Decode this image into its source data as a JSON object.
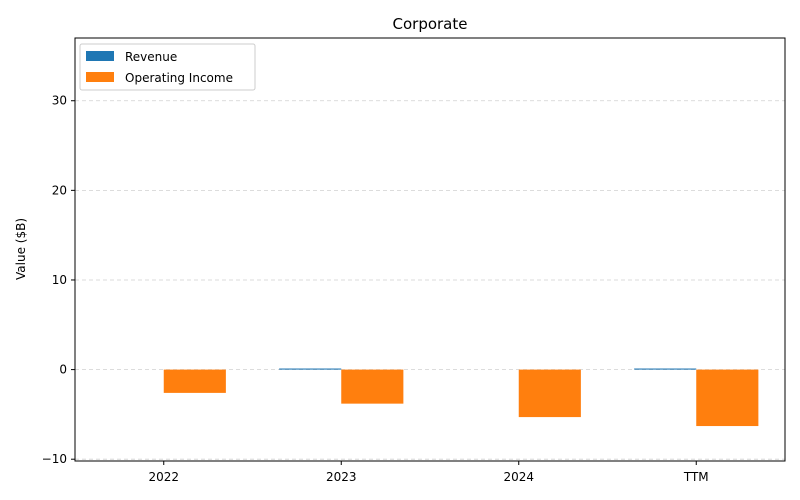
{
  "chart_data": {
    "type": "bar",
    "title": "Corporate",
    "xlabel": "",
    "ylabel": "Value ($B)",
    "categories": [
      "2022",
      "2023",
      "2024",
      "TTM"
    ],
    "series": [
      {
        "name": "Revenue",
        "color": "#1f77b4",
        "values": [
          0.0,
          0.12,
          0.0,
          0.12
        ]
      },
      {
        "name": "Operating Income",
        "color": "#ff7f0e",
        "values": [
          -2.6,
          -3.8,
          -5.3,
          -6.3
        ]
      }
    ],
    "ylim": [
      -10.2,
      37
    ],
    "yticks": [
      -10,
      0,
      10,
      20,
      30
    ],
    "ytick_labels": [
      "−10",
      "0",
      "10",
      "20",
      "30"
    ],
    "grid": true,
    "legend_position": "top-left"
  }
}
